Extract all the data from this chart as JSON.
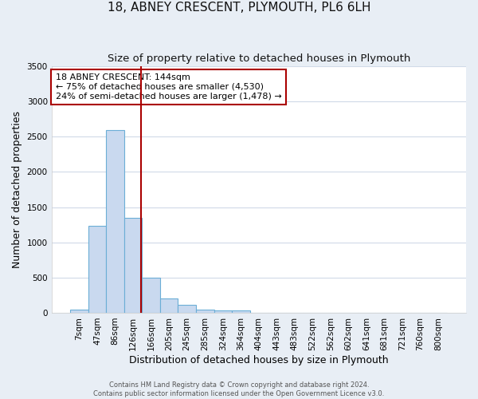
{
  "title": "18, ABNEY CRESCENT, PLYMOUTH, PL6 6LH",
  "subtitle": "Size of property relative to detached houses in Plymouth",
  "xlabel": "Distribution of detached houses by size in Plymouth",
  "ylabel": "Number of detached properties",
  "bar_labels": [
    "7sqm",
    "47sqm",
    "86sqm",
    "126sqm",
    "166sqm",
    "205sqm",
    "245sqm",
    "285sqm",
    "324sqm",
    "364sqm",
    "404sqm",
    "443sqm",
    "483sqm",
    "522sqm",
    "562sqm",
    "602sqm",
    "641sqm",
    "681sqm",
    "721sqm",
    "760sqm",
    "800sqm"
  ],
  "bar_values": [
    45,
    1230,
    2590,
    1350,
    500,
    200,
    110,
    50,
    30,
    30,
    0,
    0,
    0,
    0,
    0,
    0,
    0,
    0,
    0,
    0,
    0
  ],
  "bar_color": "#c9d9ef",
  "bar_edge_color": "#6baed6",
  "vline_color": "#aa0000",
  "annotation_text": "18 ABNEY CRESCENT: 144sqm\n← 75% of detached houses are smaller (4,530)\n24% of semi-detached houses are larger (1,478) →",
  "annotation_box_color": "#ffffff",
  "annotation_box_edge": "#aa0000",
  "ylim": [
    0,
    3500
  ],
  "yticks": [
    0,
    500,
    1000,
    1500,
    2000,
    2500,
    3000,
    3500
  ],
  "footer_line1": "Contains HM Land Registry data © Crown copyright and database right 2024.",
  "footer_line2": "Contains public sector information licensed under the Open Government Licence v3.0.",
  "fig_background_color": "#e8eef5",
  "plot_background_color": "#ffffff",
  "grid_color": "#d0dae8",
  "title_fontsize": 11,
  "subtitle_fontsize": 9.5,
  "axis_label_fontsize": 9,
  "tick_fontsize": 7.5,
  "annotation_fontsize": 8,
  "footer_fontsize": 6
}
